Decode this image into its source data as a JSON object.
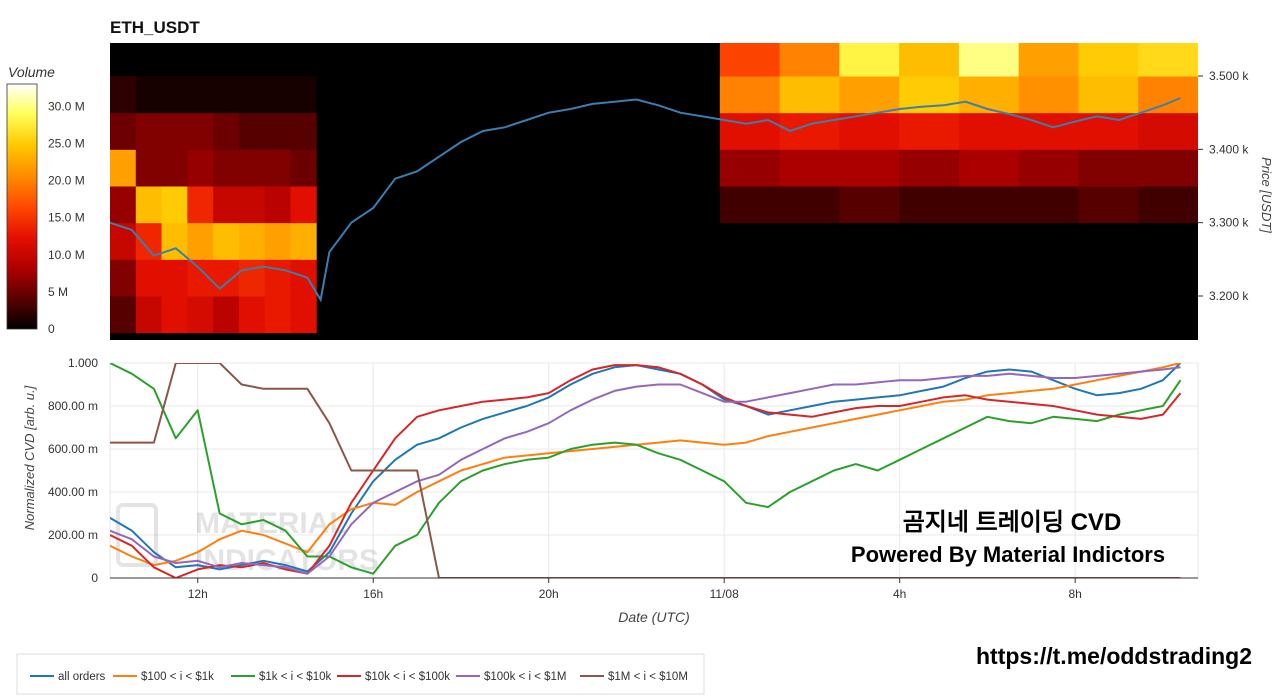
{
  "title": "ETH_USDT",
  "watermark": {
    "line1": "곰지네 트레이딩 CVD",
    "line2": "Powered By Material Indictors",
    "logo_line1": "MATERIAL",
    "logo_line2": "INDICATORS"
  },
  "footer_url": "https://t.me/oddstrading2",
  "colorbar": {
    "title": "Volume",
    "ticks": [
      "0",
      "5 M",
      "10.0 M",
      "15.0 M",
      "20.0 M",
      "25.0 M",
      "30.0 M"
    ],
    "tick_values": [
      0,
      5,
      10,
      15,
      20,
      25,
      30
    ],
    "range": [
      0,
      33
    ],
    "colors": [
      "#000000",
      "#5a0000",
      "#b00000",
      "#e51000",
      "#ff4a00",
      "#ff8c00",
      "#ffc800",
      "#ffff55",
      "#ffffff"
    ]
  },
  "chart_data": [
    {
      "type": "heatmap",
      "title": "ETH_USDT",
      "ylabel": "Price [USDT]",
      "y_ticks": [
        "3.200 k",
        "3.300 k",
        "3.400 k",
        "3.500 k"
      ],
      "y_tick_values": [
        3200,
        3300,
        3400,
        3500
      ],
      "ylim": [
        3140,
        3545
      ],
      "x_range_hours": [
        10,
        34.8
      ],
      "price_levels": [
        3175,
        3225,
        3275,
        3325,
        3375,
        3425,
        3475,
        3525
      ],
      "heatmap_blocks": [
        {
          "x_start": 10.0,
          "x_end": 14.7,
          "rows": {
            "3175": [
              4,
              10,
              12,
              11,
              9,
              12,
              13,
              12
            ],
            "3225": [
              6,
              12,
              12,
              13,
              13,
              14,
              13,
              12
            ],
            "3275": [
              10,
              14,
              24,
              22,
              24,
              23,
              22,
              23
            ],
            "3325": [
              7,
              24,
              25,
              14,
              10,
              10,
              9,
              12
            ],
            "3375": [
              22,
              6,
              6,
              7,
              6,
              6,
              6,
              5
            ],
            "3425": [
              5,
              6,
              6,
              6,
              5,
              4,
              4,
              4
            ],
            "3475": [
              2,
              1,
              1,
              1,
              1,
              1,
              1,
              1
            ],
            "3525": [
              0,
              0,
              0,
              0,
              0,
              0,
              0,
              0
            ]
          }
        },
        {
          "x_start": 23.9,
          "x_end": 34.8,
          "rows": {
            "3175": [
              0,
              0,
              0,
              0,
              0,
              0,
              0,
              0
            ],
            "3225": [
              0,
              0,
              0,
              0,
              0,
              0,
              0,
              0
            ],
            "3275": [
              0,
              0,
              0,
              0,
              0,
              0,
              0,
              0
            ],
            "3325": [
              3,
              3,
              4,
              3,
              3,
              3,
              4,
              3
            ],
            "3375": [
              7,
              8,
              8,
              7,
              8,
              7,
              6,
              6
            ],
            "3425": [
              12,
              13,
              12,
              13,
              12,
              12,
              12,
              11
            ],
            "3475": [
              20,
              24,
              22,
              25,
              23,
              21,
              24,
              20
            ],
            "3525": [
              16,
              20,
              28,
              24,
              30,
              22,
              25,
              26
            ]
          }
        }
      ],
      "price_line": {
        "name": "price",
        "color": "#3a7fb0",
        "x": [
          10.0,
          10.5,
          11.0,
          11.5,
          12.0,
          12.5,
          13.0,
          13.5,
          14.0,
          14.5,
          14.8,
          15.0,
          15.5,
          16.0,
          16.5,
          17.0,
          17.5,
          18.0,
          18.5,
          19.0,
          19.5,
          20.0,
          20.5,
          21.0,
          21.5,
          22.0,
          22.5,
          23.0,
          23.5,
          24.0,
          24.5,
          25.0,
          25.5,
          26.0,
          26.5,
          27.0,
          27.5,
          28.0,
          28.5,
          29.0,
          29.5,
          30.0,
          30.5,
          31.0,
          31.5,
          32.0,
          32.5,
          33.0,
          33.5,
          34.0,
          34.4
        ],
        "y": [
          3300,
          3290,
          3255,
          3265,
          3240,
          3210,
          3235,
          3240,
          3235,
          3225,
          3195,
          3260,
          3300,
          3320,
          3360,
          3370,
          3390,
          3410,
          3425,
          3430,
          3440,
          3450,
          3455,
          3462,
          3465,
          3468,
          3460,
          3450,
          3445,
          3440,
          3435,
          3440,
          3425,
          3435,
          3440,
          3445,
          3450,
          3455,
          3458,
          3460,
          3465,
          3455,
          3448,
          3440,
          3430,
          3438,
          3445,
          3440,
          3450,
          3460,
          3470
        ]
      }
    },
    {
      "type": "line",
      "xlabel": "Date (UTC)",
      "ylabel": "Normalized CVD [arb. u.]",
      "x_ticks": [
        "12h",
        "16h",
        "20h",
        "11/08",
        "4h",
        "8h"
      ],
      "x_tick_values": [
        12,
        16,
        20,
        24,
        28,
        32
      ],
      "y_ticks": [
        "0",
        "200.00 m",
        "400.00 m",
        "600.00 m",
        "800.00 m",
        "1.000"
      ],
      "y_tick_values": [
        0,
        0.2,
        0.4,
        0.6,
        0.8,
        1.0
      ],
      "ylim": [
        0,
        1.0
      ],
      "xlim": [
        10,
        34.8
      ],
      "legend_placement": "bottom-left",
      "x": [
        10.0,
        10.5,
        11.0,
        11.5,
        12.0,
        12.5,
        13.0,
        13.5,
        14.0,
        14.5,
        15.0,
        15.5,
        16.0,
        16.5,
        17.0,
        17.5,
        18.0,
        18.5,
        19.0,
        19.5,
        20.0,
        20.5,
        21.0,
        21.5,
        22.0,
        22.5,
        23.0,
        23.5,
        24.0,
        24.5,
        25.0,
        25.5,
        26.0,
        26.5,
        27.0,
        27.5,
        28.0,
        28.5,
        29.0,
        29.5,
        30.0,
        30.5,
        31.0,
        31.5,
        32.0,
        32.5,
        33.0,
        33.5,
        34.0,
        34.4
      ],
      "series": [
        {
          "name": "all orders",
          "color": "#1f77b4",
          "values": [
            0.28,
            0.22,
            0.12,
            0.05,
            0.06,
            0.04,
            0.06,
            0.08,
            0.06,
            0.03,
            0.12,
            0.3,
            0.45,
            0.55,
            0.62,
            0.65,
            0.7,
            0.74,
            0.77,
            0.8,
            0.84,
            0.9,
            0.95,
            0.98,
            0.99,
            0.97,
            0.95,
            0.9,
            0.83,
            0.8,
            0.76,
            0.78,
            0.8,
            0.82,
            0.83,
            0.84,
            0.85,
            0.87,
            0.89,
            0.93,
            0.96,
            0.97,
            0.96,
            0.92,
            0.88,
            0.85,
            0.86,
            0.88,
            0.92,
            1.0
          ]
        },
        {
          "name": "$100 < i < $1k",
          "color": "#ff7f0e",
          "values": [
            0.15,
            0.1,
            0.06,
            0.08,
            0.12,
            0.18,
            0.22,
            0.2,
            0.16,
            0.12,
            0.25,
            0.32,
            0.35,
            0.34,
            0.4,
            0.45,
            0.5,
            0.53,
            0.56,
            0.57,
            0.58,
            0.59,
            0.6,
            0.61,
            0.62,
            0.63,
            0.64,
            0.63,
            0.62,
            0.63,
            0.66,
            0.68,
            0.7,
            0.72,
            0.74,
            0.76,
            0.78,
            0.8,
            0.82,
            0.83,
            0.85,
            0.86,
            0.87,
            0.88,
            0.9,
            0.92,
            0.94,
            0.96,
            0.98,
            1.0
          ]
        },
        {
          "name": "$1k < i < $10k",
          "color": "#2ca02c",
          "values": [
            1.0,
            0.95,
            0.88,
            0.65,
            0.78,
            0.3,
            0.25,
            0.27,
            0.22,
            0.1,
            0.1,
            0.05,
            0.02,
            0.15,
            0.2,
            0.35,
            0.45,
            0.5,
            0.53,
            0.55,
            0.56,
            0.6,
            0.62,
            0.63,
            0.62,
            0.58,
            0.55,
            0.5,
            0.45,
            0.35,
            0.33,
            0.4,
            0.45,
            0.5,
            0.53,
            0.5,
            0.55,
            0.6,
            0.65,
            0.7,
            0.75,
            0.73,
            0.72,
            0.75,
            0.74,
            0.73,
            0.76,
            0.78,
            0.8,
            0.92
          ]
        },
        {
          "name": "$10k < i < $100k",
          "color": "#d62728",
          "values": [
            0.2,
            0.15,
            0.05,
            0.0,
            0.04,
            0.06,
            0.05,
            0.07,
            0.04,
            0.02,
            0.15,
            0.35,
            0.5,
            0.65,
            0.75,
            0.78,
            0.8,
            0.82,
            0.83,
            0.84,
            0.86,
            0.92,
            0.97,
            0.99,
            0.99,
            0.98,
            0.95,
            0.9,
            0.84,
            0.8,
            0.77,
            0.76,
            0.75,
            0.77,
            0.79,
            0.8,
            0.8,
            0.82,
            0.84,
            0.85,
            0.83,
            0.82,
            0.81,
            0.8,
            0.78,
            0.76,
            0.75,
            0.74,
            0.76,
            0.86
          ]
        },
        {
          "name": "$100k < i < $1M",
          "color": "#9467bd",
          "values": [
            0.22,
            0.18,
            0.1,
            0.07,
            0.08,
            0.05,
            0.07,
            0.06,
            0.05,
            0.02,
            0.1,
            0.25,
            0.35,
            0.4,
            0.45,
            0.48,
            0.55,
            0.6,
            0.65,
            0.68,
            0.72,
            0.78,
            0.83,
            0.87,
            0.89,
            0.9,
            0.9,
            0.86,
            0.82,
            0.82,
            0.84,
            0.86,
            0.88,
            0.9,
            0.9,
            0.91,
            0.92,
            0.92,
            0.93,
            0.94,
            0.94,
            0.95,
            0.94,
            0.93,
            0.93,
            0.94,
            0.95,
            0.96,
            0.97,
            0.98
          ]
        },
        {
          "name": "$1M < i < $10M",
          "color": "#8c564b",
          "values": [
            0.63,
            0.63,
            0.63,
            1.0,
            1.0,
            1.0,
            0.9,
            0.88,
            0.88,
            0.88,
            0.72,
            0.5,
            0.5,
            0.5,
            0.5,
            0.0,
            0.0,
            0.0,
            0.0,
            0.0,
            0.0,
            0.0,
            0.0,
            0.0,
            0.0,
            0.0,
            0.0,
            0.0,
            0.0,
            0.0,
            0.0,
            0.0,
            0.0,
            0.0,
            0.0,
            0.0,
            0.0,
            0.0,
            0.0,
            0.0,
            0.0,
            0.0,
            0.0,
            0.0,
            0.0,
            0.0,
            0.0,
            0.0,
            0.0,
            0.0
          ]
        }
      ]
    }
  ]
}
